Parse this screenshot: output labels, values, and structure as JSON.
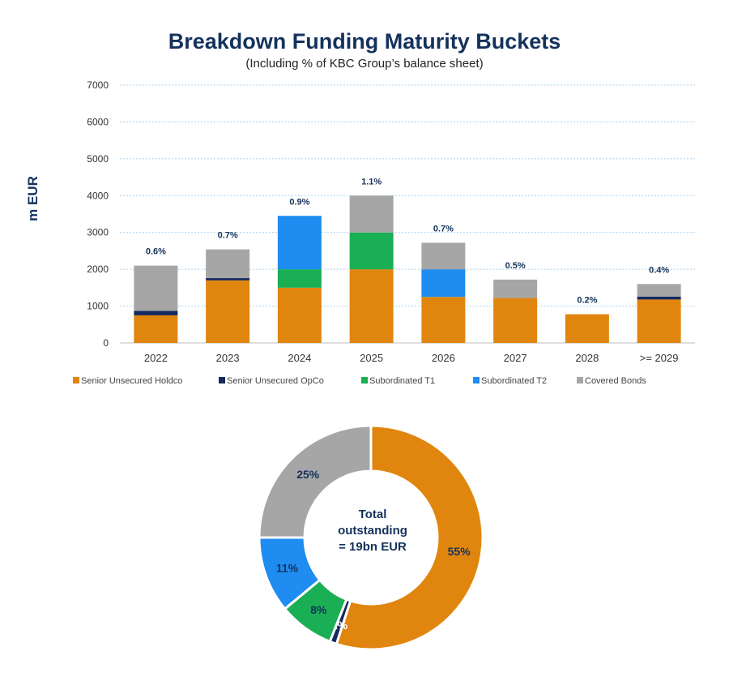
{
  "chart_data": [
    {
      "type": "bar",
      "stacked": true,
      "title": "Breakdown Funding Maturity Buckets",
      "subtitle": "(Including % of KBC Group’s balance sheet)",
      "ylabel": "m EUR",
      "ylim": [
        0,
        7000
      ],
      "yticks": [
        "0",
        "1000",
        "2000",
        "3000",
        "4000",
        "5000",
        "6000",
        "7000"
      ],
      "grid": true,
      "legend_position": "bottom",
      "categories": [
        "2022",
        "2023",
        "2024",
        "2025",
        "2026",
        "2027",
        "2028",
        ">= 2029"
      ],
      "top_labels": [
        "0.6%",
        "0.7%",
        "0.9%",
        "1.1%",
        "0.7%",
        "0.5%",
        "0.2%",
        "0.4%"
      ],
      "series": [
        {
          "name": "Senior Unsecured Holdco",
          "color": "#e0860e",
          "values": [
            750,
            1700,
            1500,
            2000,
            1250,
            1220,
            780,
            1180
          ]
        },
        {
          "name": "Senior Unsecured OpCo",
          "color": "#142a5c",
          "values": [
            120,
            60,
            0,
            0,
            0,
            0,
            0,
            80
          ]
        },
        {
          "name": "Subordinated T1",
          "color": "#1aaf54",
          "values": [
            0,
            0,
            500,
            1000,
            0,
            0,
            0,
            0
          ]
        },
        {
          "name": "Subordinated T2",
          "color": "#1e8cf0",
          "values": [
            0,
            0,
            1450,
            0,
            750,
            0,
            0,
            0
          ]
        },
        {
          "name": "Covered Bonds",
          "color": "#a6a6a6",
          "values": [
            1230,
            780,
            0,
            1000,
            720,
            500,
            0,
            340
          ]
        }
      ]
    },
    {
      "type": "pie",
      "donut": true,
      "center_text": [
        "Total",
        "outstanding",
        "= 19bn EUR"
      ],
      "slices": [
        {
          "name": "Senior Unsecured Holdco",
          "label": "55%",
          "value": 55,
          "color": "#e0860e"
        },
        {
          "name": "Senior Unsecured OpCo",
          "label": "1%",
          "value": 1,
          "color": "#142a5c"
        },
        {
          "name": "Subordinated T1",
          "label": "8%",
          "value": 8,
          "color": "#1aaf54"
        },
        {
          "name": "Subordinated T2",
          "label": "11%",
          "value": 11,
          "color": "#1e8cf0"
        },
        {
          "name": "Covered Bonds",
          "label": "25%",
          "value": 25,
          "color": "#a6a6a6"
        }
      ]
    }
  ]
}
